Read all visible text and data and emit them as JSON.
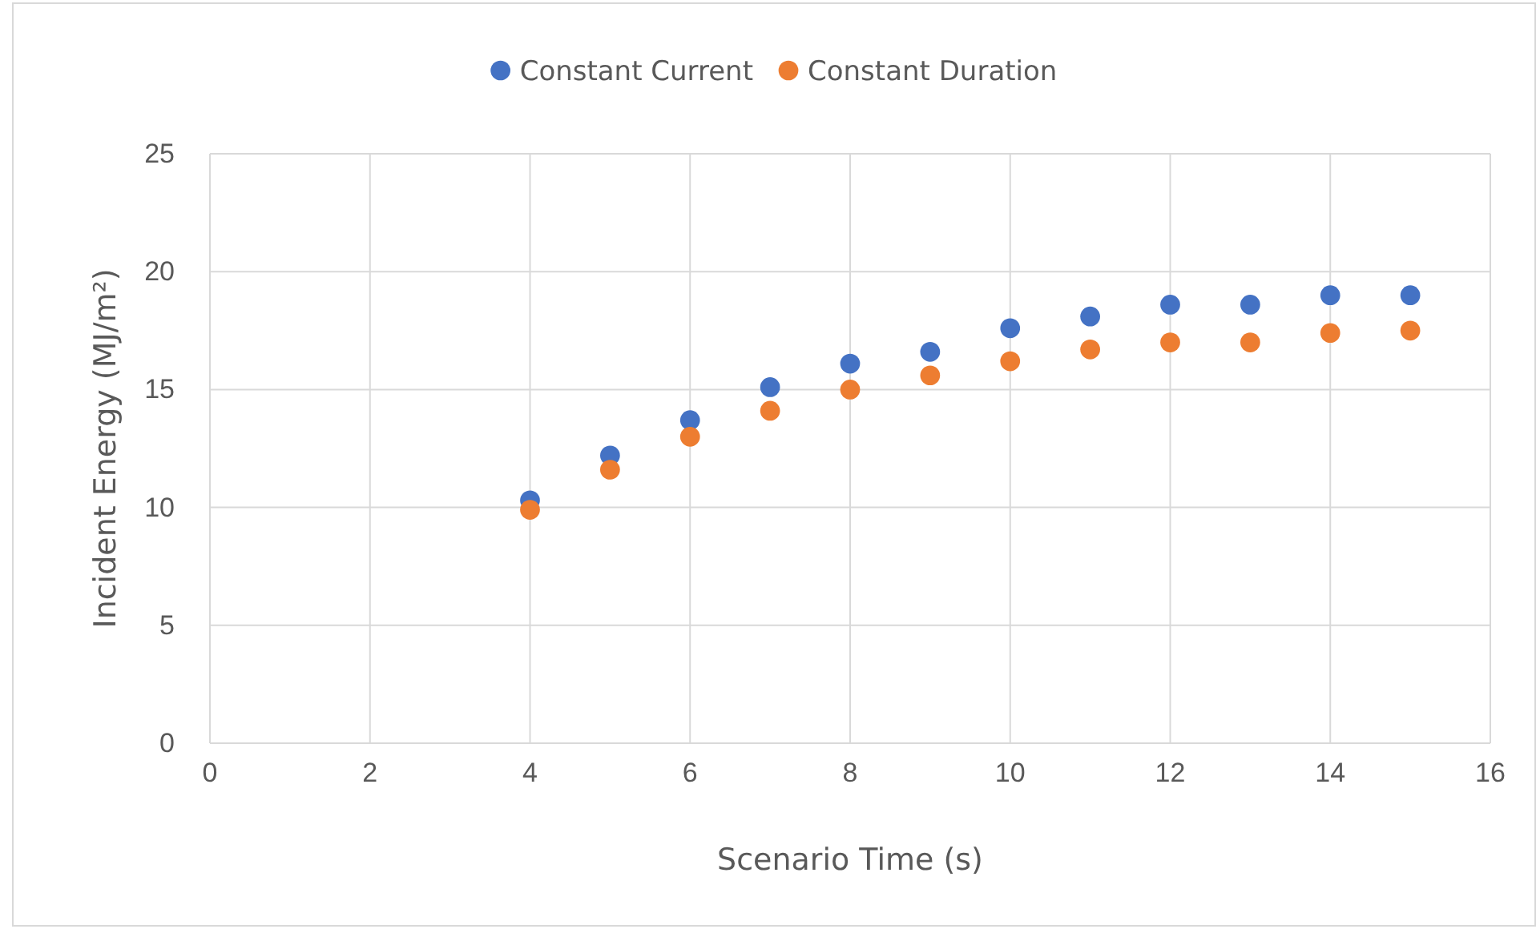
{
  "chart_data": {
    "type": "scatter",
    "xlabel": "Scenario Time (s)",
    "ylabel": "Incident Energy (MJ/m²)",
    "x": [
      4,
      5,
      6,
      7,
      8,
      9,
      10,
      11,
      12,
      13,
      14,
      15
    ],
    "series": [
      {
        "name": "Constant Current",
        "color": "#4472c4",
        "values": [
          10.3,
          12.2,
          13.7,
          15.1,
          16.1,
          16.6,
          17.6,
          18.1,
          18.6,
          18.6,
          19.0,
          19.0
        ]
      },
      {
        "name": "Constant Duration",
        "color": "#ed7d31",
        "values": [
          9.9,
          11.6,
          13.0,
          14.1,
          15.0,
          15.6,
          16.2,
          16.7,
          17.0,
          17.0,
          17.4,
          17.5
        ]
      }
    ],
    "xlim": [
      0,
      16
    ],
    "xticks": [
      0,
      2,
      4,
      6,
      8,
      10,
      12,
      14,
      16
    ],
    "ylim": [
      0,
      25
    ],
    "yticks": [
      0,
      5,
      10,
      15,
      20,
      25
    ],
    "grid": true,
    "legend": "top",
    "marker": "circle"
  }
}
